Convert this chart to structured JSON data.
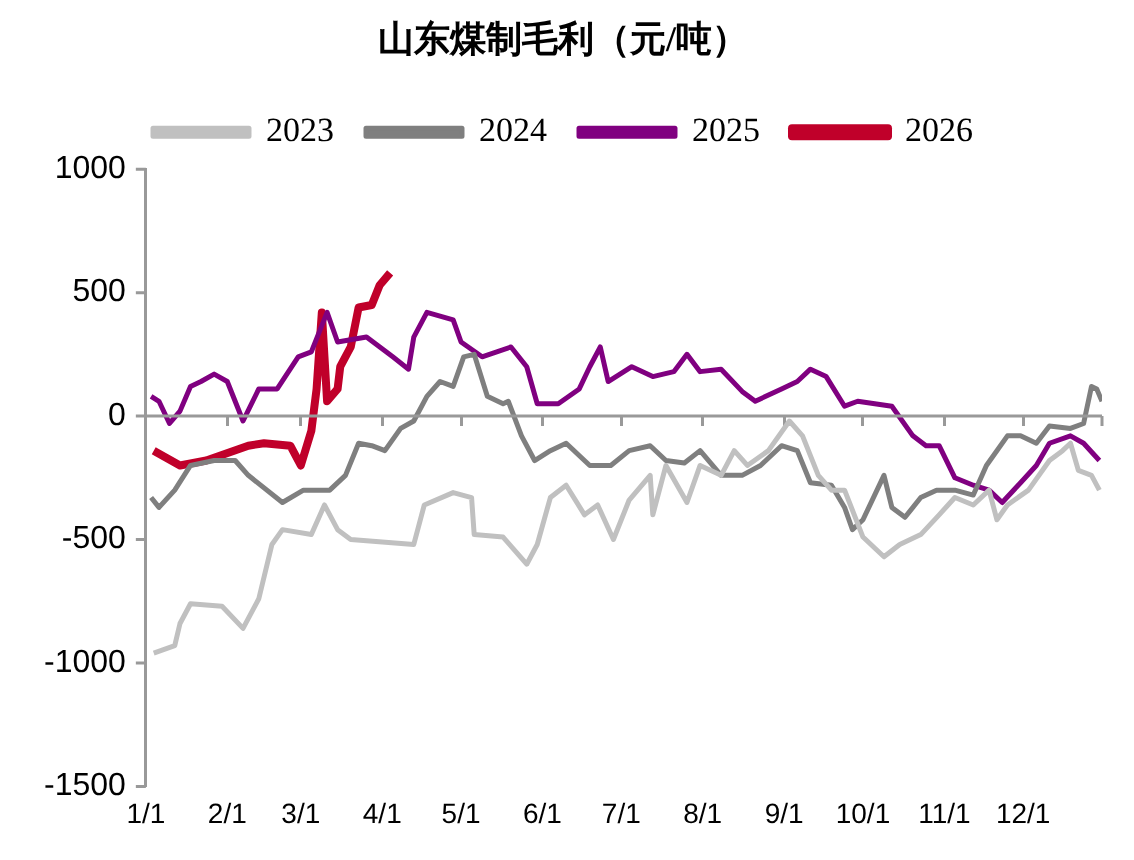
{
  "chart_data": {
    "type": "line",
    "title": "山东煤制毛利（元/吨）",
    "legend": "top",
    "grid": false,
    "marker": "none",
    "line_style": "solid",
    "xlim": [
      "--01-01",
      "--12-31"
    ],
    "xticks": [
      {
        "value": "--01-01",
        "label": "1/1"
      },
      {
        "value": "--02-01",
        "label": "2/1"
      },
      {
        "value": "--03-01",
        "label": "3/1"
      },
      {
        "value": "--04-01",
        "label": "4/1"
      },
      {
        "value": "--05-01",
        "label": "5/1"
      },
      {
        "value": "--06-01",
        "label": "6/1"
      },
      {
        "value": "--07-01",
        "label": "7/1"
      },
      {
        "value": "--08-01",
        "label": "8/1"
      },
      {
        "value": "--09-01",
        "label": "9/1"
      },
      {
        "value": "--10-01",
        "label": "10/1"
      },
      {
        "value": "--11-01",
        "label": "11/1"
      },
      {
        "value": "--12-01",
        "label": "12/1"
      }
    ],
    "ref_lines": [
      {
        "axis": "y",
        "value": 0,
        "color": "#999999",
        "line_style": "solid"
      }
    ],
    "ylim": [
      -1500,
      1000
    ],
    "yticks": [
      -1500,
      -1000,
      -500,
      0,
      500,
      1000
    ],
    "series": [
      {
        "name": "2023",
        "color": "#c0c0c0",
        "x": [
          "--01-04",
          "--01-12",
          "--01-14",
          "--01-18",
          "--01-30",
          "--02-07",
          "--02-13",
          "--02-18",
          "--02-22",
          "--03-05",
          "--03-10",
          "--03-15",
          "--03-20",
          "--04-13",
          "--04-17",
          "--04-28",
          "--05-05",
          "--05-06",
          "--05-17",
          "--05-26",
          "--05-30",
          "--06-04",
          "--06-10",
          "--06-17",
          "--06-22",
          "--06-28",
          "--07-04",
          "--07-12",
          "--07-13",
          "--07-18",
          "--07-26",
          "--07-31",
          "--08-08",
          "--08-13",
          "--08-18",
          "--08-26",
          "--09-03",
          "--09-08",
          "--09-14",
          "--09-19",
          "--09-24",
          "--10-01",
          "--10-09",
          "--10-15",
          "--10-23",
          "--10-30",
          "--11-05",
          "--11-12",
          "--11-18",
          "--11-21",
          "--11-25",
          "--12-03",
          "--12-11",
          "--12-16",
          "--12-19",
          "--12-22",
          "--12-27",
          "--12-30"
        ],
        "values": [
          -960,
          -930,
          -840,
          -760,
          -770,
          -860,
          -740,
          -520,
          -460,
          -480,
          -360,
          -460,
          -500,
          -520,
          -360,
          -310,
          -330,
          -480,
          -490,
          -600,
          -520,
          -330,
          -280,
          -400,
          -360,
          -500,
          -340,
          -240,
          -400,
          -200,
          -350,
          -200,
          -240,
          -140,
          -200,
          -140,
          -20,
          -80,
          -240,
          -300,
          -300,
          -490,
          -570,
          -520,
          -480,
          -400,
          -330,
          -360,
          -300,
          -420,
          -360,
          -300,
          -180,
          -140,
          -110,
          -220,
          -240,
          -300
        ]
      },
      {
        "name": "2024",
        "color": "#7f7f7f",
        "x": [
          "--01-03",
          "--01-06",
          "--01-12",
          "--01-18",
          "--01-27",
          "--02-04",
          "--02-09",
          "--02-22",
          "--03-02",
          "--03-12",
          "--03-18",
          "--03-23",
          "--03-28",
          "--04-02",
          "--04-08",
          "--04-13",
          "--04-18",
          "--04-23",
          "--04-28",
          "--05-02",
          "--05-06",
          "--05-11",
          "--05-17",
          "--05-19",
          "--05-24",
          "--05-29",
          "--06-04",
          "--06-10",
          "--06-19",
          "--06-27",
          "--07-04",
          "--07-12",
          "--07-18",
          "--07-25",
          "--07-31",
          "--08-08",
          "--08-16",
          "--08-23",
          "--08-31",
          "--09-06",
          "--09-11",
          "--09-19",
          "--09-24",
          "--09-27",
          "--10-01",
          "--10-09",
          "--10-12",
          "--10-17",
          "--10-23",
          "--10-29",
          "--11-05",
          "--11-12",
          "--11-17",
          "--11-25",
          "--11-30",
          "--12-06",
          "--12-11",
          "--12-19",
          "--12-24",
          "--12-27",
          "--12-29",
          "--12-31"
        ],
        "values": [
          -330,
          -370,
          -300,
          -200,
          -180,
          -180,
          -240,
          -350,
          -300,
          -300,
          -240,
          -110,
          -120,
          -140,
          -50,
          -20,
          80,
          140,
          120,
          240,
          250,
          80,
          50,
          60,
          -80,
          -180,
          -140,
          -110,
          -200,
          -200,
          -140,
          -120,
          -180,
          -190,
          -140,
          -240,
          -240,
          -200,
          -120,
          -140,
          -270,
          -280,
          -370,
          -460,
          -420,
          -240,
          -370,
          -410,
          -330,
          -300,
          -300,
          -320,
          -200,
          -80,
          -80,
          -110,
          -40,
          -50,
          -30,
          120,
          110,
          60
        ]
      },
      {
        "name": "2025",
        "color": "#800080",
        "x": [
          "--01-03",
          "--01-06",
          "--01-10",
          "--01-14",
          "--01-18",
          "--01-22",
          "--01-27",
          "--02-01",
          "--02-07",
          "--02-13",
          "--02-20",
          "--02-28",
          "--03-05",
          "--03-11",
          "--03-15",
          "--03-26",
          "--04-05",
          "--04-11",
          "--04-13",
          "--04-18",
          "--04-28",
          "--05-01",
          "--05-09",
          "--05-20",
          "--05-26",
          "--05-30",
          "--06-07",
          "--06-15",
          "--06-19",
          "--06-23",
          "--06-26",
          "--07-05",
          "--07-13",
          "--07-21",
          "--07-26",
          "--07-31",
          "--08-08",
          "--08-16",
          "--08-21",
          "--08-31",
          "--09-06",
          "--09-11",
          "--09-17",
          "--09-24",
          "--09-29",
          "--10-12",
          "--10-20",
          "--10-25",
          "--10-30",
          "--11-05",
          "--11-12",
          "--11-18",
          "--11-23",
          "--11-30",
          "--12-06",
          "--12-11",
          "--12-19",
          "--12-24",
          "--12-30"
        ],
        "values": [
          80,
          60,
          -30,
          20,
          120,
          140,
          170,
          140,
          -20,
          110,
          110,
          240,
          260,
          420,
          300,
          320,
          240,
          190,
          320,
          420,
          390,
          300,
          240,
          280,
          200,
          50,
          50,
          110,
          200,
          280,
          140,
          200,
          160,
          180,
          250,
          180,
          190,
          100,
          60,
          110,
          140,
          190,
          160,
          40,
          60,
          40,
          -80,
          -120,
          -120,
          -250,
          -280,
          -300,
          -350,
          -270,
          -200,
          -110,
          -80,
          -110,
          -180
        ]
      },
      {
        "name": "2026",
        "color": "#c0002a",
        "x": [
          "--01-04",
          "--01-14",
          "--01-24",
          "--02-09",
          "--02-15",
          "--02-25",
          "--03-01",
          "--03-05",
          "--03-07",
          "--03-09",
          "--03-11",
          "--03-15",
          "--03-16",
          "--03-20",
          "--03-23",
          "--03-28",
          "--03-31",
          "--04-04"
        ],
        "values": [
          -140,
          -200,
          -180,
          -120,
          -110,
          -120,
          -200,
          -60,
          110,
          420,
          60,
          110,
          200,
          280,
          440,
          450,
          530,
          580
        ]
      }
    ]
  }
}
